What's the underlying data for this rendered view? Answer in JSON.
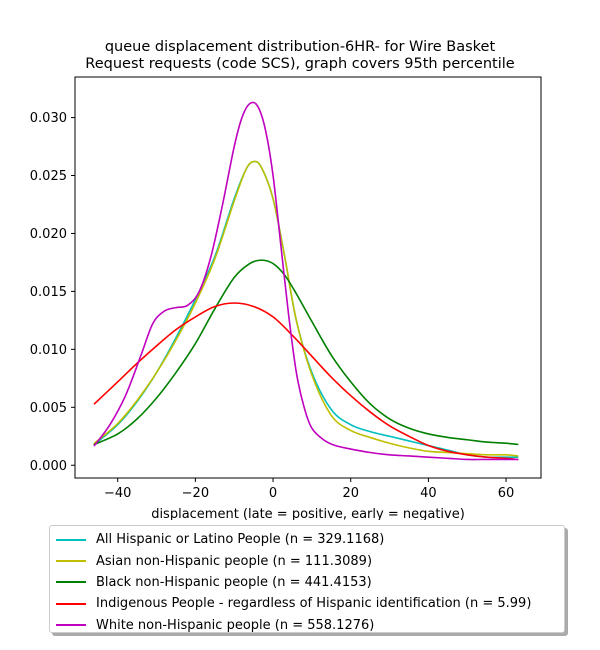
{
  "chart_data": {
    "type": "line",
    "title_lines": [
      "queue displacement distribution-6HR-  for Wire Basket",
      "Request  requests (code SCS), graph covers 95th percentile"
    ],
    "xlabel": "displacement (late = positive, early = negative)",
    "ylabel": "",
    "xlim": [
      -51,
      69
    ],
    "ylim": [
      -0.0011,
      0.0335
    ],
    "xticks": [
      -40,
      -20,
      0,
      20,
      40,
      60
    ],
    "yticks": [
      0.0,
      0.005,
      0.01,
      0.015,
      0.02,
      0.025,
      0.03
    ],
    "ytick_labels": [
      "0.000",
      "0.005",
      "0.010",
      "0.015",
      "0.020",
      "0.025",
      "0.030"
    ],
    "grid": false,
    "legend_position": "below",
    "series": [
      {
        "name": "All Hispanic or Latino People (n = 329.1168)",
        "color": "#00bfbf",
        "x": [
          -46,
          -40,
          -35,
          -30,
          -25,
          -20,
          -15,
          -10,
          -7,
          -5,
          -3,
          0,
          3,
          6,
          10,
          15,
          20,
          25,
          30,
          35,
          40,
          45,
          50,
          55,
          60,
          63
        ],
        "y": [
          0.0018,
          0.0035,
          0.0055,
          0.008,
          0.011,
          0.0143,
          0.018,
          0.023,
          0.0255,
          0.0262,
          0.0257,
          0.023,
          0.018,
          0.0125,
          0.008,
          0.0048,
          0.0035,
          0.0029,
          0.0025,
          0.0021,
          0.0017,
          0.0013,
          0.0009,
          0.0007,
          0.0007,
          0.0007
        ]
      },
      {
        "name": "Asian non-Hispanic people (n = 111.3089)",
        "color": "#bfbf00",
        "x": [
          -46,
          -40,
          -35,
          -30,
          -25,
          -20,
          -15,
          -10,
          -7,
          -5,
          -3,
          0,
          3,
          6,
          10,
          15,
          20,
          25,
          30,
          35,
          40,
          45,
          50,
          55,
          60,
          63
        ],
        "y": [
          0.0019,
          0.0036,
          0.0056,
          0.008,
          0.0108,
          0.014,
          0.0178,
          0.0228,
          0.0255,
          0.0262,
          0.0257,
          0.023,
          0.018,
          0.0125,
          0.0078,
          0.0043,
          0.003,
          0.0024,
          0.0019,
          0.0015,
          0.0012,
          0.0011,
          0.001,
          0.0009,
          0.0009,
          0.0008
        ]
      },
      {
        "name": "Black non-Hispanic people (n = 441.4153)",
        "color": "#008000",
        "x": [
          -46,
          -40,
          -35,
          -30,
          -25,
          -20,
          -15,
          -10,
          -6,
          -3,
          0,
          3,
          6,
          10,
          15,
          20,
          25,
          30,
          35,
          40,
          45,
          50,
          55,
          60,
          63
        ],
        "y": [
          0.0018,
          0.0027,
          0.004,
          0.0058,
          0.008,
          0.0105,
          0.0135,
          0.0162,
          0.0174,
          0.0177,
          0.0174,
          0.0164,
          0.0148,
          0.0124,
          0.0095,
          0.0072,
          0.0053,
          0.004,
          0.0032,
          0.0027,
          0.0024,
          0.0022,
          0.002,
          0.0019,
          0.0018
        ]
      },
      {
        "name": "Indigenous People - regardless of Hispanic identification (n = 5.99)",
        "color": "#ff0000",
        "x": [
          -46,
          -40,
          -35,
          -30,
          -25,
          -20,
          -15,
          -10,
          -5,
          0,
          5,
          10,
          15,
          20,
          25,
          30,
          35,
          40,
          45,
          50,
          55,
          60,
          63
        ],
        "y": [
          0.0053,
          0.0072,
          0.0088,
          0.0103,
          0.0117,
          0.0128,
          0.0137,
          0.014,
          0.0137,
          0.0128,
          0.0112,
          0.0094,
          0.0076,
          0.006,
          0.0046,
          0.0034,
          0.0025,
          0.0017,
          0.0012,
          0.0009,
          0.0007,
          0.0006,
          0.0005
        ]
      },
      {
        "name": "White non-Hispanic people (n = 558.1276)",
        "color": "#bf00bf",
        "x": [
          -46,
          -42,
          -38,
          -34,
          -31,
          -28,
          -25,
          -22,
          -19,
          -16,
          -13,
          -10,
          -8,
          -6,
          -4,
          -2,
          0,
          2,
          4,
          6,
          8,
          10,
          13,
          16,
          20,
          25,
          30,
          35,
          40,
          45,
          50,
          55,
          60,
          63
        ],
        "y": [
          0.0017,
          0.0035,
          0.006,
          0.0095,
          0.0122,
          0.0133,
          0.0136,
          0.0138,
          0.015,
          0.018,
          0.0225,
          0.0275,
          0.03,
          0.0312,
          0.031,
          0.029,
          0.025,
          0.019,
          0.013,
          0.008,
          0.005,
          0.0032,
          0.0022,
          0.0017,
          0.0014,
          0.0011,
          0.0009,
          0.0008,
          0.0007,
          0.0006,
          0.0005,
          0.0005,
          0.0005,
          0.0005
        ]
      }
    ]
  }
}
